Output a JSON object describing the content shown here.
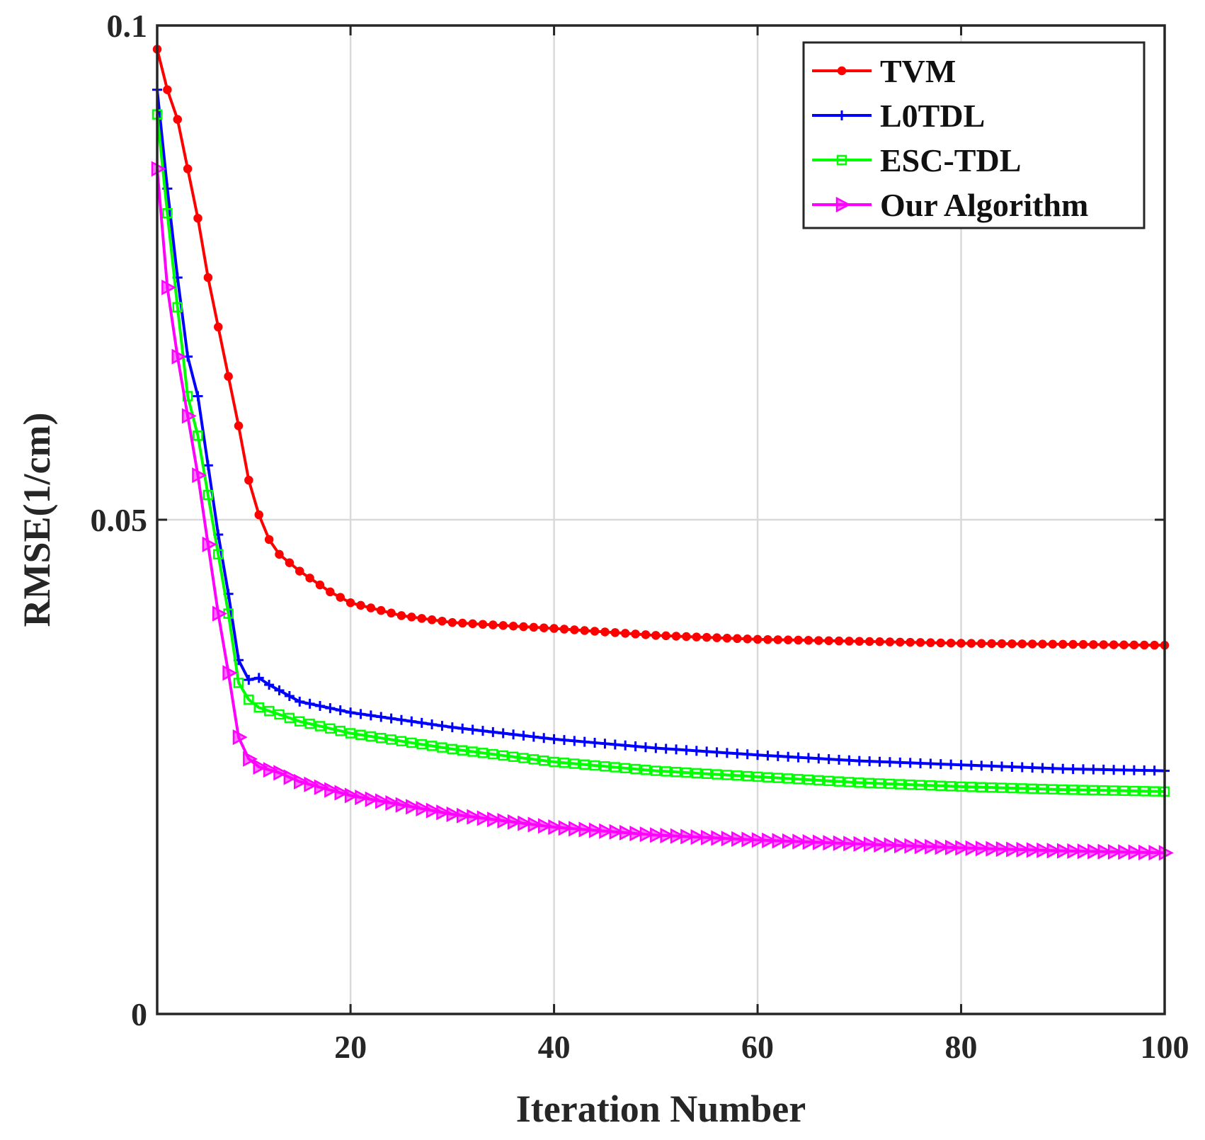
{
  "chart_data": {
    "type": "line",
    "title": "",
    "xlabel": "Iteration Number",
    "ylabel": "RMSE(1/cm)",
    "xlim": [
      1,
      100
    ],
    "ylim": [
      0,
      0.1
    ],
    "xticks": [
      20,
      40,
      60,
      80,
      100
    ],
    "xtick_labels": [
      "20",
      "40",
      "60",
      "80",
      "100"
    ],
    "yticks": [
      0,
      0.05,
      0.1
    ],
    "ytick_labels": [
      "0",
      "0.05",
      "0.1"
    ],
    "grid": true,
    "legend_position": "top-right",
    "series": [
      {
        "name": "TVM",
        "color": "#ff0000",
        "marker": "circle",
        "anchors": [
          [
            1,
            0.0976
          ],
          [
            2,
            0.0935
          ],
          [
            3,
            0.0905
          ],
          [
            4,
            0.0855
          ],
          [
            5,
            0.0805
          ],
          [
            6,
            0.0745
          ],
          [
            7,
            0.0695
          ],
          [
            8,
            0.0645
          ],
          [
            9,
            0.0595
          ],
          [
            10,
            0.054
          ],
          [
            11,
            0.0505
          ],
          [
            12,
            0.048
          ],
          [
            13,
            0.0465
          ],
          [
            15,
            0.0448
          ],
          [
            18,
            0.0427
          ],
          [
            20,
            0.0416
          ],
          [
            25,
            0.0403
          ],
          [
            30,
            0.0396
          ],
          [
            40,
            0.039
          ],
          [
            50,
            0.0383
          ],
          [
            60,
            0.0379
          ],
          [
            80,
            0.0375
          ],
          [
            100,
            0.0373
          ]
        ]
      },
      {
        "name": "L0TDL",
        "color": "#0000ff",
        "marker": "plus",
        "anchors": [
          [
            1,
            0.0935
          ],
          [
            2,
            0.0835
          ],
          [
            3,
            0.0745
          ],
          [
            4,
            0.0665
          ],
          [
            5,
            0.0625
          ],
          [
            6,
            0.0555
          ],
          [
            7,
            0.0485
          ],
          [
            8,
            0.0425
          ],
          [
            9,
            0.0358
          ],
          [
            10,
            0.0338
          ],
          [
            11,
            0.034
          ],
          [
            12,
            0.0333
          ],
          [
            15,
            0.0316
          ],
          [
            20,
            0.0305
          ],
          [
            30,
            0.029
          ],
          [
            40,
            0.0278
          ],
          [
            50,
            0.0269
          ],
          [
            60,
            0.0262
          ],
          [
            70,
            0.0256
          ],
          [
            80,
            0.0252
          ],
          [
            90,
            0.0248
          ],
          [
            100,
            0.0246
          ]
        ]
      },
      {
        "name": "ESC-TDL",
        "color": "#00ff00",
        "marker": "square",
        "anchors": [
          [
            1,
            0.091
          ],
          [
            2,
            0.081
          ],
          [
            3,
            0.0715
          ],
          [
            4,
            0.0625
          ],
          [
            5,
            0.0585
          ],
          [
            6,
            0.0525
          ],
          [
            7,
            0.0465
          ],
          [
            8,
            0.0405
          ],
          [
            9,
            0.0335
          ],
          [
            10,
            0.0318
          ],
          [
            11,
            0.031
          ],
          [
            15,
            0.0296
          ],
          [
            20,
            0.0284
          ],
          [
            30,
            0.0268
          ],
          [
            40,
            0.0255
          ],
          [
            50,
            0.0246
          ],
          [
            60,
            0.024
          ],
          [
            70,
            0.0234
          ],
          [
            80,
            0.023
          ],
          [
            90,
            0.0227
          ],
          [
            100,
            0.0225
          ]
        ]
      },
      {
        "name": "Our Algorithm",
        "color": "#ff00ff",
        "marker": "triangle-right",
        "anchors": [
          [
            1,
            0.0855
          ],
          [
            2,
            0.0735
          ],
          [
            3,
            0.0665
          ],
          [
            4,
            0.0605
          ],
          [
            5,
            0.0545
          ],
          [
            6,
            0.0475
          ],
          [
            7,
            0.0405
          ],
          [
            8,
            0.0345
          ],
          [
            9,
            0.028
          ],
          [
            10,
            0.0258
          ],
          [
            11,
            0.025
          ],
          [
            13,
            0.0244
          ],
          [
            15,
            0.0235
          ],
          [
            20,
            0.0221
          ],
          [
            30,
            0.0202
          ],
          [
            40,
            0.0189
          ],
          [
            50,
            0.0181
          ],
          [
            60,
            0.0176
          ],
          [
            70,
            0.0172
          ],
          [
            80,
            0.0168
          ],
          [
            90,
            0.0165
          ],
          [
            100,
            0.0163
          ]
        ]
      }
    ]
  }
}
